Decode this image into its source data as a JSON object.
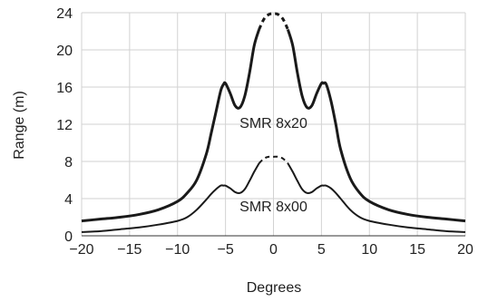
{
  "chart_data": {
    "type": "line",
    "xlabel": "Degrees",
    "ylabel": "Range (m)",
    "xlim": [
      -20,
      20
    ],
    "ylim": [
      0,
      24
    ],
    "xticks": [
      -20,
      -15,
      -10,
      -5,
      0,
      5,
      10,
      15,
      20
    ],
    "yticks": [
      0,
      4,
      8,
      12,
      16,
      20,
      24
    ],
    "xtick_labels": [
      "−20",
      "−15",
      "−10",
      "−5",
      "0",
      "5",
      "10",
      "15",
      "20"
    ],
    "ytick_labels": [
      "0",
      "4",
      "8",
      "12",
      "16",
      "20",
      "24"
    ],
    "grid": true,
    "series": [
      {
        "name": "SMR 8x20",
        "color": "#1a1a1a",
        "dashed_range": [
          -1.5,
          1.5
        ],
        "x": [
          -20,
          -18,
          -16,
          -14,
          -12,
          -10,
          -9,
          -8,
          -7,
          -6.5,
          -6,
          -5.5,
          -5.2,
          -5,
          -4.5,
          -4,
          -3.5,
          -3,
          -2.5,
          -2,
          -1.5,
          -1,
          -0.5,
          0,
          0.5,
          1,
          1.5,
          2,
          2.5,
          3,
          3.5,
          4,
          4.5,
          5,
          5.2,
          5.5,
          6,
          6.5,
          7,
          8,
          9,
          10,
          12,
          14,
          16,
          18,
          20
        ],
        "y": [
          1.6,
          1.8,
          2.0,
          2.3,
          2.8,
          3.7,
          4.6,
          6.0,
          8.8,
          11.0,
          13.3,
          15.6,
          16.3,
          16.4,
          15.3,
          14.0,
          13.8,
          15.0,
          17.5,
          20.5,
          22.2,
          23.3,
          23.8,
          23.9,
          23.8,
          23.3,
          22.2,
          20.5,
          17.5,
          15.0,
          13.8,
          14.0,
          15.3,
          16.4,
          16.4,
          16.3,
          14.5,
          12.0,
          9.3,
          6.2,
          4.6,
          3.7,
          2.8,
          2.3,
          2.0,
          1.8,
          1.6
        ]
      },
      {
        "name": "SMR 8x00",
        "color": "#1a1a1a",
        "dashed_range": [
          -1.5,
          1.5
        ],
        "x": [
          -20,
          -18,
          -16,
          -14,
          -12,
          -10,
          -9,
          -8,
          -7,
          -6.5,
          -6,
          -5.5,
          -5.2,
          -5,
          -4.5,
          -4,
          -3.5,
          -3,
          -2.5,
          -2,
          -1.5,
          -1,
          -0.5,
          0,
          0.5,
          1,
          1.5,
          2,
          2.5,
          3,
          3.5,
          4,
          4.5,
          5,
          5.2,
          5.5,
          6,
          6.5,
          7,
          8,
          9,
          10,
          12,
          14,
          16,
          18,
          20
        ],
        "y": [
          0.4,
          0.5,
          0.7,
          0.9,
          1.2,
          1.6,
          2.0,
          2.8,
          3.9,
          4.5,
          5.0,
          5.4,
          5.4,
          5.4,
          5.1,
          4.7,
          4.6,
          5.0,
          5.9,
          6.9,
          7.8,
          8.3,
          8.5,
          8.5,
          8.5,
          8.3,
          7.8,
          6.9,
          5.9,
          5.0,
          4.6,
          4.7,
          5.1,
          5.4,
          5.4,
          5.4,
          5.1,
          4.6,
          4.0,
          2.8,
          2.0,
          1.6,
          1.2,
          0.9,
          0.7,
          0.5,
          0.4
        ]
      }
    ],
    "annotations": [
      {
        "text": "SMR 8x20",
        "x": 0,
        "y": 12.2
      },
      {
        "text": "SMR 8x00",
        "x": 0,
        "y": 3.2
      }
    ]
  }
}
